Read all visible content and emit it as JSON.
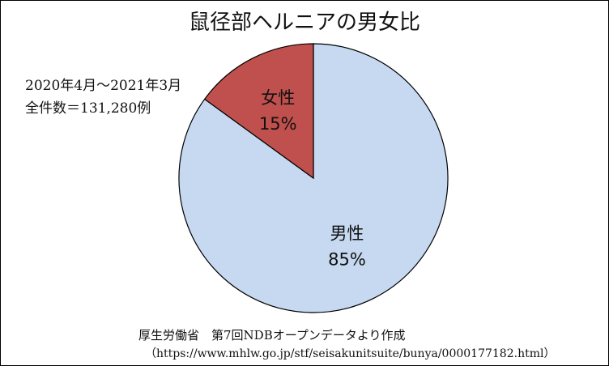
{
  "chart_data": {
    "type": "pie",
    "title": "鼠径部ヘルニアの男女比",
    "start_angle": "top",
    "direction": "clockwise",
    "slices": [
      {
        "label": "男性",
        "value": 85,
        "value_label": "85%",
        "color": "#c6d9f1"
      },
      {
        "label": "女性",
        "value": 15,
        "value_label": "15%",
        "color": "#c0504d"
      }
    ],
    "stroke_color": "#000000"
  },
  "annotations": {
    "period": "2020年4月～2021年3月",
    "count": "全件数＝131,280例"
  },
  "source": {
    "line1": "厚生労働省　第7回NDBオープンデータより作成",
    "line2": "（https://www.mhlw.go.jp/stf/seisakunitsuite/bunya/0000177182.html）"
  }
}
